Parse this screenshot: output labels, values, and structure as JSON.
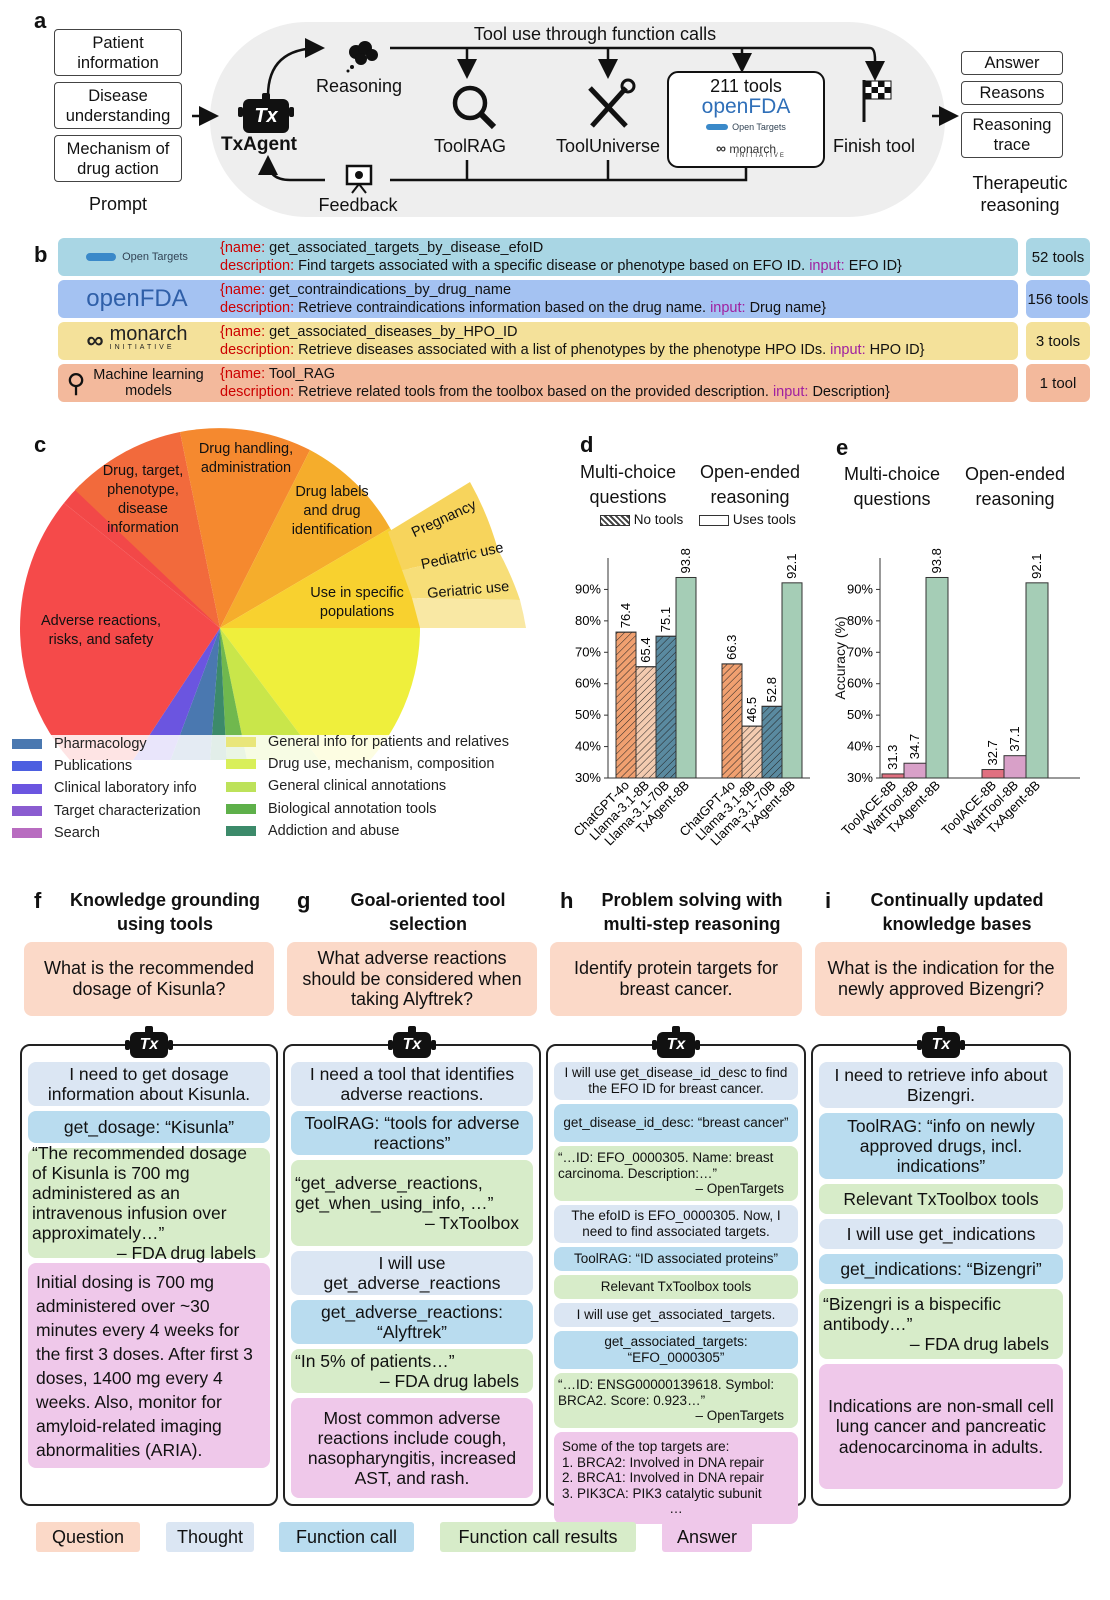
{
  "labels": {
    "a": "a",
    "b": "b",
    "c": "c",
    "d": "d",
    "e": "e",
    "f": "f",
    "g": "g",
    "h": "h",
    "i": "i"
  },
  "panel_a": {
    "inputs": [
      "Patient information",
      "Disease understanding",
      "Mechanism of drug action"
    ],
    "prompt": "Prompt",
    "agent": "TxAgent",
    "tx": "Tx",
    "top_label": "Tool use through function calls",
    "reasoning": "Reasoning",
    "toolrag": "ToolRAG",
    "tooluniverse": "ToolUniverse",
    "tools_count": "211 tools",
    "openfda": "openFDA",
    "opentargets": "Open Targets",
    "monarch": "monarch",
    "monarch_sub": "INITIATIVE",
    "finish": "Finish tool",
    "feedback": "Feedback",
    "outputs": [
      "Answer",
      "Reasons",
      "Reasoning trace"
    ],
    "output_caption": "Therapeutic reasoning"
  },
  "panel_b": {
    "rows": [
      {
        "logo": "Open Targets",
        "name_key": "{name:",
        "name": " get_associated_targets_by_disease_efoID",
        "desc_key": "description:",
        "desc": " Find targets associated with a specific disease or phenotype based on EFO ID. ",
        "input_key": "input:",
        "input": " EFO ID}",
        "count": "52 tools"
      },
      {
        "logo": "openFDA",
        "name_key": "{name:",
        "name": " get_contraindications_by_drug_name",
        "desc_key": "description:",
        "desc": " Retrieve contraindications information based on the drug name. ",
        "input_key": "input:",
        "input": " Drug name}",
        "count": "156 tools"
      },
      {
        "logo": "monarch",
        "logo_sub": "INITIATIVE",
        "name_key": "{name:",
        "name": " get_associated_diseases_by_HPO_ID",
        "desc_key": "description:",
        "desc": " Retrieve diseases associated with a list of phenotypes by the phenotype HPO IDs. ",
        "input_key": "input:",
        "input": " HPO ID}",
        "count": "3 tools"
      },
      {
        "logo": "Machine learning models",
        "name_key": "{name:",
        "name": " Tool_RAG",
        "desc_key": "description:",
        "desc": " Retrieve related tools from the toolbox based on the provided description. ",
        "input_key": "input:",
        "input": " Description}",
        "count": "1 tool"
      }
    ]
  },
  "panel_c": {
    "slice_labels": [
      "Adverse reactions, risks, and safety",
      "Drug, target, phenotype, disease information",
      "Drug handling, administration",
      "Drug labels and drug identification",
      "Use in specific populations",
      "Pregnancy",
      "Pediatric use",
      "Geriatric use"
    ],
    "legend_left": [
      "Pharmacology",
      "Publications",
      "Clinical laboratory info",
      "Target characterization",
      "Search"
    ],
    "legend_right": [
      "General info for patients and relatives",
      "Drug use, mechanism, composition",
      "General clinical annotations",
      "Biological annotation tools",
      "Addiction and abuse"
    ],
    "colors_left": [
      "#4a78b0",
      "#4d5fe0",
      "#6b55e0",
      "#8a5cd0",
      "#b86cc0"
    ],
    "colors_right": [
      "#e9e67a",
      "#d9ef5a",
      "#bde25a",
      "#5eb04a",
      "#3c8a6a"
    ]
  },
  "chart_data": [
    {
      "type": "bar",
      "title": "d",
      "groups": [
        "Multi-choice questions",
        "Open-ended reasoning"
      ],
      "categories": [
        "ChatGPT-4o",
        "Llama-3.1-8B",
        "Llama-3.1-70B",
        "TxAgent-8B"
      ],
      "series": [
        {
          "name": "Multi-choice questions",
          "values": [
            76.4,
            65.4,
            75.1,
            93.8
          ]
        },
        {
          "name": "Open-ended reasoning",
          "values": [
            66.3,
            46.5,
            52.8,
            92.1
          ]
        }
      ],
      "legend": [
        "No tools",
        "Uses tools"
      ],
      "yticks": [
        "30%",
        "40%",
        "50%",
        "60%",
        "70%",
        "80%",
        "90%"
      ],
      "ylim": [
        30,
        100
      ]
    },
    {
      "type": "bar",
      "title": "e",
      "groups": [
        "Multi-choice questions",
        "Open-ended reasoning"
      ],
      "categories": [
        "ToolACE-8B",
        "WattTool-8B",
        "TxAgent-8B"
      ],
      "series": [
        {
          "name": "Multi-choice questions",
          "values": [
            31.3,
            34.7,
            93.8
          ]
        },
        {
          "name": "Open-ended reasoning",
          "values": [
            32.7,
            37.1,
            92.1
          ]
        }
      ],
      "ylabel": "Accuracy (%)",
      "yticks": [
        "30%",
        "40%",
        "50%",
        "60%",
        "70%",
        "80%",
        "90%"
      ],
      "ylim": [
        30,
        100
      ]
    }
  ],
  "panels_fi": [
    {
      "label": "f",
      "title": "Knowledge grounding using tools",
      "question": "What is the recommended dosage of Kisunla?",
      "steps": [
        {
          "k": "t",
          "text": "I need to get dosage information about Kisunla."
        },
        {
          "k": "f",
          "text": "get_dosage: “Kisunla”"
        },
        {
          "k": "r",
          "text": "“The recommended dosage of Kisunla is 700 mg administered as an intravenous infusion over approximately…”",
          "src": "– FDA drug labels"
        },
        {
          "k": "a",
          "text": "Initial dosing is 700 mg administered over ~30 minutes every 4 weeks for the first 3 doses. After first 3 doses, 1400 mg every 4 weeks. Also, monitor for amyloid-related imaging abnormalities (ARIA)."
        }
      ]
    },
    {
      "label": "g",
      "title": "Goal-oriented tool selection",
      "question": "What adverse reactions should be considered when taking Alyftrek?",
      "steps": [
        {
          "k": "t",
          "text": "I need a tool that identifies adverse reactions."
        },
        {
          "k": "f",
          "text": "ToolRAG: “tools for adverse reactions”"
        },
        {
          "k": "r",
          "text": "“get_adverse_reactions, get_when_using_info, …”",
          "src": "– TxToolbox"
        },
        {
          "k": "t",
          "text": "I will use get_adverse_reactions"
        },
        {
          "k": "f",
          "text": "get_adverse_reactions: “Alyftrek”"
        },
        {
          "k": "r",
          "text": "“In 5% of patients…”",
          "src": "– FDA drug labels"
        },
        {
          "k": "a",
          "text": "Most common adverse reactions include cough, nasopharyngitis, increased AST, and rash."
        }
      ]
    },
    {
      "label": "h",
      "title": "Problem solving with multi-step reasoning",
      "question": "Identify protein targets for breast cancer.",
      "steps": [
        {
          "k": "t",
          "text": "I will use get_disease_id_desc to find the EFO ID for breast cancer."
        },
        {
          "k": "f",
          "text": "get_disease_id_desc: “breast cancer”"
        },
        {
          "k": "r",
          "text": "“…ID: EFO_0000305. Name: breast carcinoma. Description:…”",
          "src": "– OpenTargets"
        },
        {
          "k": "t",
          "text": "The efoID is EFO_0000305. Now, I need to find associated targets."
        },
        {
          "k": "f",
          "text": "ToolRAG: “ID associated proteins”"
        },
        {
          "k": "r",
          "text": "Relevant TxToolbox tools"
        },
        {
          "k": "t",
          "text": "I will use get_associated_targets."
        },
        {
          "k": "f",
          "text": "get_associated_targets: “EFO_0000305”"
        },
        {
          "k": "r",
          "text": "“…ID: ENSG00000139618. Symbol: BRCA2. Score: 0.923…”",
          "src": "– OpenTargets"
        },
        {
          "k": "a",
          "text": "Some of the top targets are:",
          "list": [
            "1.    BRCA2: Involved in DNA repair",
            "2.    BRCA1: Involved in DNA repair",
            "3.    PIK3CA: PIK3 catalytic subunit"
          ],
          "end": "…"
        }
      ]
    },
    {
      "label": "i",
      "title": "Continually updated knowledge bases",
      "question": "What is the indication for the newly approved Bizengri?",
      "steps": [
        {
          "k": "t",
          "text": "I need to retrieve info about Bizengri."
        },
        {
          "k": "f",
          "text": "ToolRAG: “info on newly approved drugs, incl. indications”"
        },
        {
          "k": "r",
          "text": "Relevant TxToolbox tools"
        },
        {
          "k": "t",
          "text": "I will use get_indications"
        },
        {
          "k": "f",
          "text": "get_indications: “Bizengri”"
        },
        {
          "k": "r",
          "text": "“Bizengri is a bispecific antibody…”",
          "src": "– FDA drug labels"
        },
        {
          "k": "a",
          "text": "Indications are non-small cell lung cancer and pancreatic adenocarcinoma in adults."
        }
      ]
    }
  ],
  "bottom_legend": [
    "Question",
    "Thought",
    "Function call",
    "Function call results",
    "Answer"
  ]
}
